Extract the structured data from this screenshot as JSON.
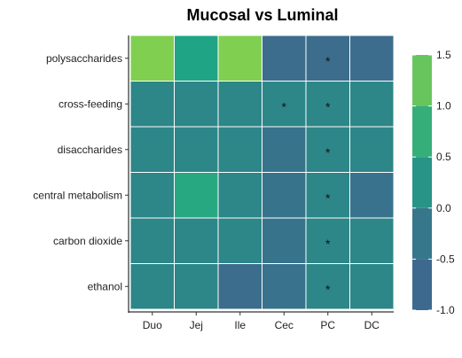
{
  "chart_data": {
    "type": "heatmap",
    "title": "Mucosal vs Luminal",
    "xlabel": "",
    "ylabel": "",
    "x_categories": [
      "Duo",
      "Jej",
      "Ile",
      "Cec",
      "PC",
      "DC"
    ],
    "y_categories": [
      "polysaccharides",
      "cross-feeding",
      "disaccharides",
      "central metabolism",
      "carbon dioxide",
      "ethanol"
    ],
    "values": [
      [
        1.45,
        0.5,
        1.45,
        -0.45,
        -0.45,
        -0.45
      ],
      [
        0.05,
        0.05,
        0.05,
        0.05,
        0.05,
        0.05
      ],
      [
        0.05,
        0.05,
        0.05,
        -0.3,
        0.05,
        0.05
      ],
      [
        0.05,
        0.6,
        0.05,
        -0.3,
        0.05,
        -0.35
      ],
      [
        0.05,
        0.05,
        0.05,
        -0.3,
        0.05,
        0.05
      ],
      [
        0.05,
        0.05,
        -0.45,
        -0.35,
        0.05,
        0.05
      ]
    ],
    "significance": [
      [
        "",
        "",
        "",
        "",
        "*",
        ""
      ],
      [
        "",
        "",
        "",
        "*",
        "*",
        ""
      ],
      [
        "",
        "",
        "",
        "",
        "*",
        ""
      ],
      [
        "",
        "",
        "",
        "",
        "*",
        ""
      ],
      [
        "",
        "",
        "",
        "",
        "*",
        ""
      ],
      [
        "",
        "",
        "",
        "",
        "*",
        ""
      ]
    ],
    "color_scale": {
      "range": [
        -1.0,
        1.5
      ],
      "tick_labels": [
        "1.5",
        "1.0",
        "0.5",
        "0.0",
        "-0.5",
        "-1.0"
      ],
      "stops": [
        {
          "value": -1.0,
          "color": "#3f6790"
        },
        {
          "value": -0.5,
          "color": "#3d6a8e"
        },
        {
          "value": 0.0,
          "color": "#2e8388"
        },
        {
          "value": 0.5,
          "color": "#20a486"
        },
        {
          "value": 1.0,
          "color": "#4ab86e"
        },
        {
          "value": 1.5,
          "color": "#86d14e"
        }
      ]
    },
    "legend_position": "right",
    "grid": false
  }
}
